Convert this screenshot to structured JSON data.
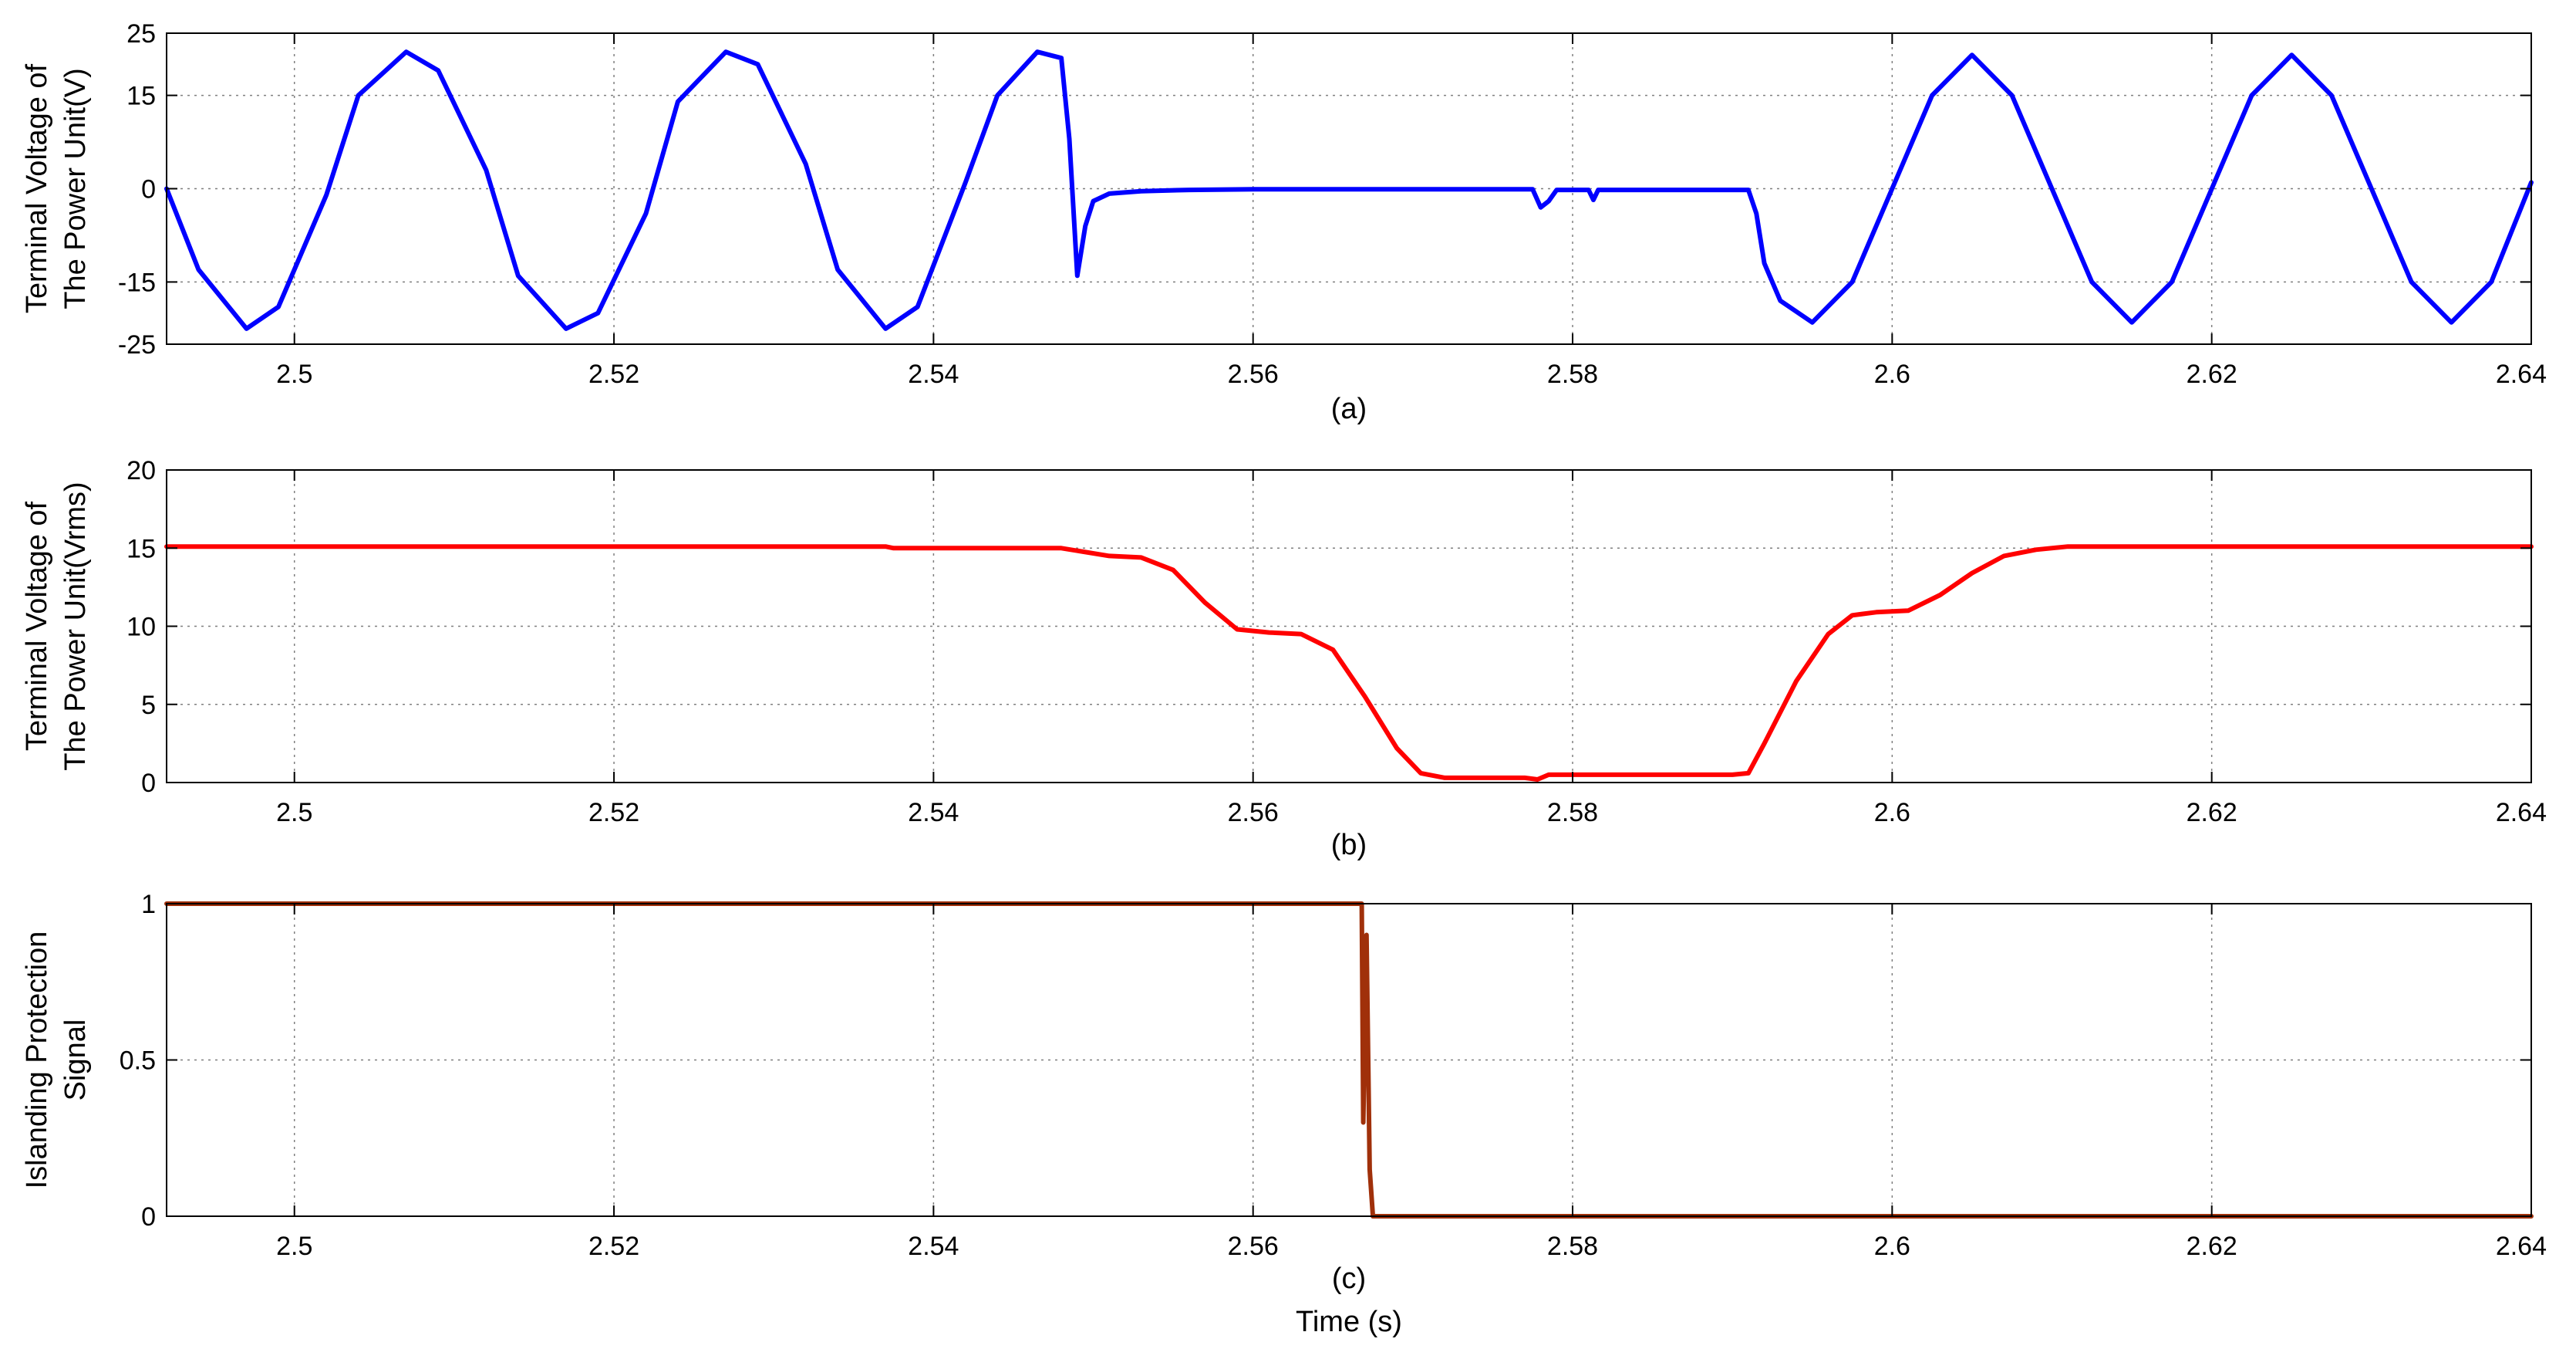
{
  "colors": {
    "axes": "#000000",
    "grid": "#7f7f7f",
    "panel_bg": "#ffffff"
  },
  "chart_data": [
    {
      "id": "a",
      "type": "line",
      "caption": "(a)",
      "xlabel": "",
      "ylabel_lines": [
        "Terminal Voltage of",
        "The Power Unit(V)"
      ],
      "xlim": [
        2.492,
        2.64
      ],
      "ylim": [
        -25,
        25
      ],
      "xticks": [
        2.5,
        2.52,
        2.54,
        2.56,
        2.58,
        2.6,
        2.62,
        2.64
      ],
      "xtick_labels": [
        "2.5",
        "2.52",
        "2.54",
        "2.56",
        "2.58",
        "2.6",
        "2.62",
        "2.64"
      ],
      "yticks": [
        -25,
        -15,
        0,
        15,
        25
      ],
      "ytick_labels": [
        "-25",
        "-15",
        "0",
        "15",
        "25"
      ],
      "grid": true,
      "series": [
        {
          "color": "#0000ff",
          "x": [
            2.492,
            2.494,
            2.497,
            2.499,
            2.502,
            2.504,
            2.507,
            2.509,
            2.512,
            2.514,
            2.517,
            2.519,
            2.522,
            2.524,
            2.527,
            2.529,
            2.532,
            2.534,
            2.537,
            2.539,
            2.542,
            2.544,
            2.5465,
            2.548,
            2.5485,
            2.549,
            2.5495,
            2.55,
            2.551,
            2.553,
            2.556,
            2.56,
            2.565,
            2.57,
            2.575,
            2.5775,
            2.578,
            2.5785,
            2.579,
            2.581,
            2.5813,
            2.5816,
            2.5819,
            2.583,
            2.586,
            2.589,
            2.591,
            2.5915,
            2.592,
            2.593,
            2.595,
            2.5975,
            2.6,
            2.6025,
            2.605,
            2.6075,
            2.61,
            2.6125,
            2.615,
            2.6175,
            2.62,
            2.6225,
            2.625,
            2.6275,
            2.63,
            2.6325,
            2.635,
            2.6375,
            2.64
          ],
          "y": [
            0,
            -13,
            -22.5,
            -19,
            -1,
            15,
            22,
            19,
            3,
            -14,
            -22.5,
            -20,
            -4,
            14,
            22,
            20,
            4,
            -13,
            -22.5,
            -19,
            1,
            15,
            22,
            21,
            8,
            -14,
            -6,
            -2,
            -0.8,
            -0.4,
            -0.2,
            -0.1,
            -0.1,
            -0.1,
            -0.1,
            -0.1,
            -3,
            -2,
            -0.2,
            -0.2,
            -1.8,
            -0.2,
            -0.2,
            -0.2,
            -0.2,
            -0.2,
            -0.2,
            -4,
            -12,
            -18,
            -21.5,
            -15,
            0,
            15,
            21.5,
            15,
            0,
            -15,
            -21.5,
            -15,
            0,
            15,
            21.5,
            15,
            0,
            -15,
            -21.5,
            -15,
            1
          ]
        }
      ]
    },
    {
      "id": "b",
      "type": "line",
      "caption": "(b)",
      "xlabel": "",
      "ylabel_lines": [
        "Terminal Voltage of",
        "The Power Unit(Vrms)"
      ],
      "xlim": [
        2.492,
        2.64
      ],
      "ylim": [
        0,
        20
      ],
      "xticks": [
        2.5,
        2.52,
        2.54,
        2.56,
        2.58,
        2.6,
        2.62,
        2.64
      ],
      "xtick_labels": [
        "2.5",
        "2.52",
        "2.54",
        "2.56",
        "2.58",
        "2.6",
        "2.62",
        "2.64"
      ],
      "yticks": [
        0,
        5,
        10,
        15,
        20
      ],
      "ytick_labels": [
        "0",
        "5",
        "10",
        "15",
        "20"
      ],
      "grid": true,
      "series": [
        {
          "color": "#ff0000",
          "x": [
            2.492,
            2.537,
            2.5375,
            2.548,
            2.551,
            2.553,
            2.555,
            2.557,
            2.559,
            2.561,
            2.563,
            2.565,
            2.567,
            2.569,
            2.5705,
            2.572,
            2.577,
            2.5778,
            2.5785,
            2.59,
            2.591,
            2.592,
            2.594,
            2.596,
            2.5975,
            2.599,
            2.601,
            2.603,
            2.605,
            2.607,
            2.609,
            2.611,
            2.613,
            2.64
          ],
          "y": [
            15.1,
            15.1,
            15.0,
            15.0,
            14.5,
            14.4,
            13.6,
            11.5,
            9.8,
            9.6,
            9.5,
            8.5,
            5.5,
            2.2,
            0.6,
            0.3,
            0.3,
            0.2,
            0.5,
            0.5,
            0.6,
            2.5,
            6.5,
            9.5,
            10.7,
            10.9,
            11.0,
            12.0,
            13.4,
            14.5,
            14.9,
            15.1,
            15.1,
            15.1
          ]
        }
      ]
    },
    {
      "id": "c",
      "type": "line",
      "caption": "(c)",
      "xlabel": "Time (s)",
      "ylabel_lines": [
        "Islanding Protection",
        "Signal"
      ],
      "xlim": [
        2.492,
        2.64
      ],
      "ylim": [
        0,
        1
      ],
      "xticks": [
        2.5,
        2.52,
        2.54,
        2.56,
        2.58,
        2.6,
        2.62,
        2.64
      ],
      "xtick_labels": [
        "2.5",
        "2.52",
        "2.54",
        "2.56",
        "2.58",
        "2.6",
        "2.62",
        "2.64"
      ],
      "yticks": [
        0,
        0.5,
        1
      ],
      "ytick_labels": [
        "0",
        "0.5",
        "1"
      ],
      "grid": true,
      "series": [
        {
          "color": "#a0300a",
          "x": [
            2.492,
            2.5668,
            2.5669,
            2.5671,
            2.5673,
            2.5675,
            2.64
          ],
          "y": [
            1,
            1,
            0.3,
            0.9,
            0.15,
            0,
            0
          ]
        }
      ]
    }
  ]
}
